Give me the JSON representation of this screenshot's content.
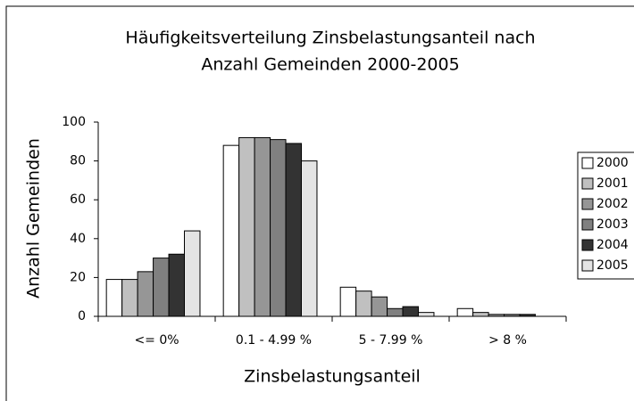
{
  "chart_data": {
    "type": "bar",
    "title": [
      "Häufigkeitsverteilung Zinsbelastungsanteil nach",
      "Anzahl Gemeinden 2000-2005"
    ],
    "y_label": "Anzahl Gemeinden",
    "x_label": "Zinsbelastungsanteil",
    "categories": [
      "<= 0%",
      "0.1 - 4.99 %",
      "5 - 7.99 %",
      "> 8 %"
    ],
    "series": [
      {
        "name": "2000",
        "color": "#ffffff",
        "values": [
          19,
          88,
          15,
          4
        ]
      },
      {
        "name": "2001",
        "color": "#c0c0c0",
        "values": [
          19,
          92,
          13,
          2
        ]
      },
      {
        "name": "2002",
        "color": "#969696",
        "values": [
          23,
          92,
          10,
          1
        ]
      },
      {
        "name": "2003",
        "color": "#808080",
        "values": [
          30,
          91,
          4,
          1
        ]
      },
      {
        "name": "2004",
        "color": "#333333",
        "values": [
          32,
          89,
          5,
          1
        ]
      },
      {
        "name": "2005",
        "color": "#e4e4e4",
        "values": [
          44,
          80,
          2,
          0
        ]
      }
    ],
    "ylim": [
      0,
      100
    ],
    "yticks": [
      0,
      20,
      40,
      60,
      80,
      100
    ],
    "grid": false,
    "legend": "right"
  }
}
